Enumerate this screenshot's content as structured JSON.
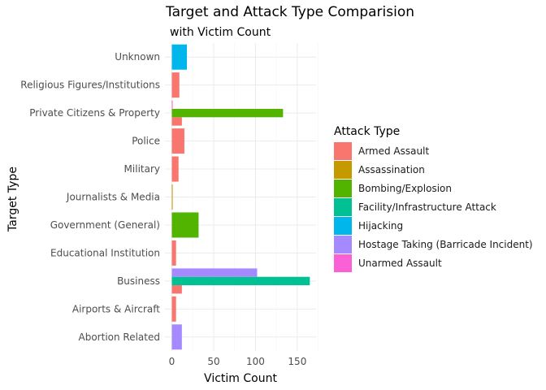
{
  "chart_data": {
    "type": "bar",
    "orientation": "horizontal",
    "position": "dodge",
    "title": "Target and Attack Type Comparision",
    "subtitle": "with Victim Count",
    "xlabel": "Victim Count",
    "ylabel": "Target Type",
    "xlim": [
      0,
      175
    ],
    "xticks": [
      0,
      50,
      100,
      150
    ],
    "grid": true,
    "legend": {
      "title": "Attack Type",
      "placement": "right"
    },
    "categories": [
      "Abortion Related",
      "Airports & Aircraft",
      "Business",
      "Educational Institution",
      "Government (General)",
      "Journalists & Media",
      "Military",
      "Police",
      "Private Citizens & Property",
      "Religious Figures/Institutions",
      "Unknown"
    ],
    "attack_types": [
      {
        "name": "Armed Assault",
        "color": "#F8766D"
      },
      {
        "name": "Assassination",
        "color": "#C49A00"
      },
      {
        "name": "Bombing/Explosion",
        "color": "#53B400"
      },
      {
        "name": "Facility/Infrastructure Attack",
        "color": "#00C094"
      },
      {
        "name": "Hijacking",
        "color": "#00B6EB"
      },
      {
        "name": "Hostage Taking (Barricade Incident)",
        "color": "#A58AFF"
      },
      {
        "name": "Unarmed Assault",
        "color": "#FB61D7"
      }
    ],
    "bars": [
      {
        "category": "Abortion Related",
        "groups": [
          {
            "type": "Hostage Taking (Barricade Incident)",
            "value": 12
          }
        ]
      },
      {
        "category": "Airports & Aircraft",
        "groups": [
          {
            "type": "Armed Assault",
            "value": 5
          }
        ]
      },
      {
        "category": "Business",
        "groups": [
          {
            "type": "Armed Assault",
            "value": 12
          },
          {
            "type": "Facility/Infrastructure Attack",
            "value": 165
          },
          {
            "type": "Hostage Taking (Barricade Incident)",
            "value": 102
          }
        ]
      },
      {
        "category": "Educational Institution",
        "groups": [
          {
            "type": "Armed Assault",
            "value": 5
          }
        ]
      },
      {
        "category": "Government (General)",
        "groups": [
          {
            "type": "Bombing/Explosion",
            "value": 32
          }
        ]
      },
      {
        "category": "Journalists & Media",
        "groups": [
          {
            "type": "Assassination",
            "value": 1
          }
        ]
      },
      {
        "category": "Military",
        "groups": [
          {
            "type": "Armed Assault",
            "value": 8
          }
        ]
      },
      {
        "category": "Police",
        "groups": [
          {
            "type": "Armed Assault",
            "value": 15
          }
        ]
      },
      {
        "category": "Private Citizens & Property",
        "groups": [
          {
            "type": "Armed Assault",
            "value": 12
          },
          {
            "type": "Bombing/Explosion",
            "value": 133
          },
          {
            "type": "Unarmed Assault",
            "value": 1
          }
        ]
      },
      {
        "category": "Religious Figures/Institutions",
        "groups": [
          {
            "type": "Armed Assault",
            "value": 9
          }
        ]
      },
      {
        "category": "Unknown",
        "groups": [
          {
            "type": "Hijacking",
            "value": 18
          }
        ]
      }
    ]
  }
}
